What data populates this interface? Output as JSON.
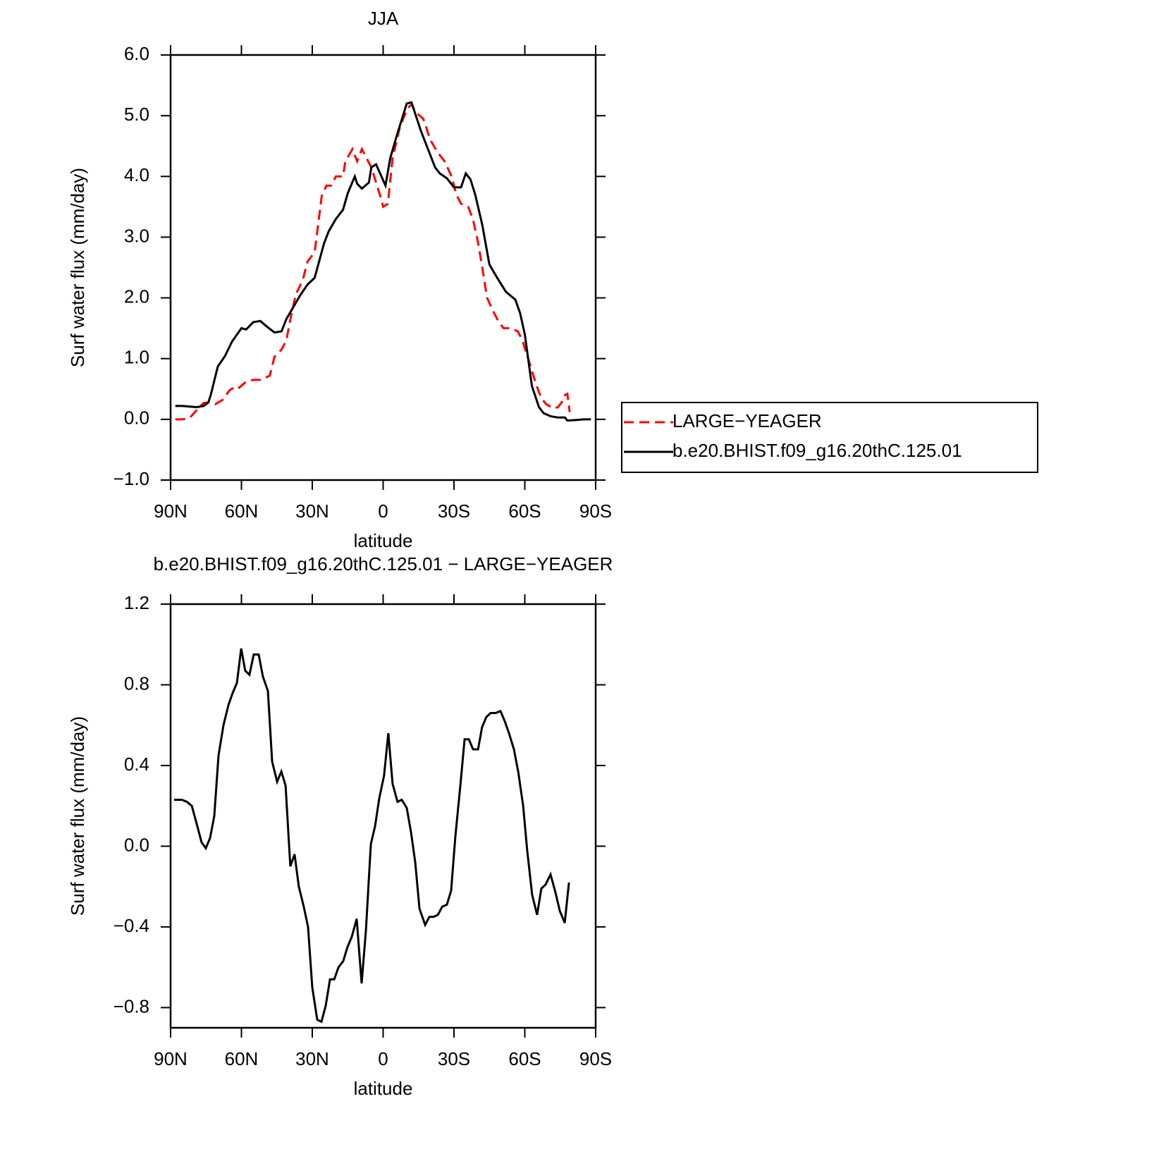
{
  "chart_data": [
    {
      "type": "line",
      "title": "JJA",
      "xlabel": "latitude",
      "ylabel": "Surf water flux (mm/day)",
      "xlim": [
        90,
        -90
      ],
      "xticks": [
        {
          "value": 90,
          "label": "90N"
        },
        {
          "value": 60,
          "label": "60N"
        },
        {
          "value": 30,
          "label": "30N"
        },
        0,
        {
          "value": -30,
          "label": "30S"
        },
        {
          "value": -60,
          "label": "60S"
        },
        {
          "value": -90,
          "label": "90S"
        }
      ],
      "ylim": [
        -1,
        6
      ],
      "yticks": [
        {
          "value": 6,
          "label": "6.0"
        },
        {
          "value": 5,
          "label": "5.0"
        },
        {
          "value": 4,
          "label": "4.0"
        },
        {
          "value": 3,
          "label": "3.0"
        },
        {
          "value": 2,
          "label": "2.0"
        },
        {
          "value": 1,
          "label": "1.0"
        },
        {
          "value": 0,
          "label": "0.0"
        },
        {
          "value": -1,
          "label": "−1.0"
        }
      ],
      "legend": "right",
      "series": [
        {
          "name": "LARGE−YEAGER",
          "color": "#ff0000",
          "linestyle": "dashed",
          "x": [
            88,
            85,
            82,
            79,
            76,
            73,
            71,
            68,
            65,
            62,
            61,
            58,
            55,
            52,
            49,
            48,
            46,
            43,
            41,
            39,
            37,
            34,
            32,
            29,
            26,
            24,
            22,
            20,
            17,
            16,
            13,
            11,
            9,
            7,
            5,
            1,
            0,
            -2,
            -4,
            -7,
            -9,
            -11,
            -12,
            -14,
            -17,
            -20,
            -23,
            -26,
            -29,
            -31,
            -33,
            -36,
            -38,
            -40,
            -42,
            -44,
            -47,
            -49,
            -51,
            -54,
            -57,
            -59,
            -61,
            -63,
            -65,
            -67,
            -69,
            -72,
            -74,
            -76,
            -77,
            -78,
            -79
          ],
          "values": [
            0,
            0,
            0.02,
            0.15,
            0.27,
            0.28,
            0.25,
            0.32,
            0.48,
            0.55,
            0.52,
            0.62,
            0.65,
            0.65,
            0.7,
            0.72,
            1.03,
            1.15,
            1.3,
            1.7,
            2.05,
            2.3,
            2.6,
            2.75,
            3.68,
            3.85,
            3.85,
            4.0,
            4.0,
            4.25,
            4.45,
            4.25,
            4.45,
            4.3,
            4.15,
            3.65,
            3.5,
            3.55,
            4.3,
            4.8,
            5.0,
            5.15,
            5.18,
            5.05,
            4.95,
            4.6,
            4.4,
            4.25,
            4.0,
            3.7,
            3.55,
            3.5,
            3.3,
            2.95,
            2.5,
            2.0,
            1.75,
            1.6,
            1.5,
            1.5,
            1.45,
            1.3,
            1.05,
            0.8,
            0.55,
            0.35,
            0.25,
            0.18,
            0.2,
            0.3,
            0.4,
            0.42,
            0.12
          ]
        },
        {
          "name": "b.e20.BHIST.f09_g16.20thC.125.01",
          "color": "#000000",
          "linestyle": "solid",
          "x": [
            88,
            85,
            82,
            79,
            76,
            74,
            73,
            70,
            67,
            64,
            60,
            58,
            55,
            52,
            49,
            46,
            43,
            41,
            38,
            35,
            32,
            29,
            25,
            23,
            20,
            17,
            15,
            12,
            11,
            9,
            6,
            5,
            3,
            -1,
            -3,
            -6,
            -10,
            -12,
            -16,
            -19,
            -22,
            -24,
            -27,
            -30,
            -33,
            -35,
            -37,
            -39,
            -42,
            -45,
            -48,
            -52,
            -56,
            -58,
            -60,
            -63,
            -66,
            -68,
            -71,
            -74,
            -77,
            -78,
            -82,
            -85,
            -88
          ],
          "values": [
            0.22,
            0.22,
            0.21,
            0.2,
            0.22,
            0.28,
            0.4,
            0.87,
            1.04,
            1.28,
            1.5,
            1.48,
            1.6,
            1.62,
            1.52,
            1.43,
            1.45,
            1.65,
            1.85,
            2.05,
            2.22,
            2.33,
            2.9,
            3.1,
            3.3,
            3.45,
            3.72,
            4.0,
            3.88,
            3.8,
            3.9,
            4.15,
            4.2,
            3.85,
            4.3,
            4.7,
            5.2,
            5.22,
            4.75,
            4.45,
            4.15,
            4.05,
            3.97,
            3.82,
            3.82,
            4.05,
            3.95,
            3.7,
            3.2,
            2.55,
            2.35,
            2.1,
            1.97,
            1.75,
            1.4,
            0.55,
            0.2,
            0.1,
            0.05,
            0.03,
            0.03,
            -0.02,
            -0.01,
            0.0,
            0.0
          ]
        }
      ]
    },
    {
      "type": "line",
      "title": "b.e20.BHIST.f09_g16.20thC.125.01 − LARGE−YEAGER",
      "xlabel": "latitude",
      "ylabel": "Surf water flux (mm/day)",
      "xlim": [
        90,
        -90
      ],
      "xticks": [
        {
          "value": 90,
          "label": "90N"
        },
        {
          "value": 60,
          "label": "60N"
        },
        {
          "value": 30,
          "label": "30N"
        },
        0,
        {
          "value": -30,
          "label": "30S"
        },
        {
          "value": -60,
          "label": "60S"
        },
        {
          "value": -90,
          "label": "90S"
        }
      ],
      "ylim": [
        -0.9,
        1.2
      ],
      "yticks": [
        1.2,
        0.8,
        0.4,
        {
          "value": 0,
          "label": "0.0"
        },
        {
          "value": -0.4,
          "label": "−0.4"
        },
        {
          "value": -0.8,
          "label": "−0.8"
        }
      ],
      "series": [
        {
          "color": "#000000",
          "linestyle": "solid",
          "x": [
            88.5,
            85.2,
            83.1,
            81.0,
            78.7,
            76.9,
            75.1,
            73.3,
            71.5,
            69.7,
            67.6,
            65.5,
            63.7,
            61.9,
            60.1,
            58.4,
            56.6,
            54.8,
            52.7,
            50.9,
            48.8,
            47.0,
            44.9,
            43.1,
            41.3,
            39.3,
            37.5,
            35.7,
            33.6,
            31.8,
            30.0,
            27.9,
            26.1,
            24.3,
            22.5,
            20.7,
            18.9,
            16.9,
            15.1,
            13.3,
            11.2,
            9.1,
            7.3,
            5.2,
            3.4,
            1.6,
            -0.4,
            -2.2,
            -4.0,
            -6.1,
            -7.9,
            -10.0,
            -11.8,
            -13.6,
            -15.4,
            -17.8,
            -19.6,
            -21.4,
            -23.2,
            -25.0,
            -27.0,
            -28.8,
            -30.6,
            -32.7,
            -34.5,
            -36.3,
            -38.1,
            -40.2,
            -41.9,
            -43.7,
            -45.5,
            -47.6,
            -49.7,
            -51.5,
            -53.3,
            -55.4,
            -57.2,
            -59.3,
            -61.0,
            -63.1,
            -65.2,
            -67.0,
            -68.8,
            -70.9,
            -73.0,
            -74.8,
            -76.9,
            -78.7
          ],
          "values": [
            0.23,
            0.23,
            0.22,
            0.2,
            0.1,
            0.02,
            -0.01,
            0.04,
            0.15,
            0.45,
            0.6,
            0.7,
            0.76,
            0.81,
            0.98,
            0.87,
            0.85,
            0.95,
            0.95,
            0.84,
            0.77,
            0.42,
            0.32,
            0.37,
            0.3,
            -0.1,
            -0.04,
            -0.2,
            -0.3,
            -0.4,
            -0.7,
            -0.86,
            -0.87,
            -0.79,
            -0.66,
            -0.66,
            -0.6,
            -0.57,
            -0.5,
            -0.45,
            -0.36,
            -0.68,
            -0.42,
            0.01,
            0.1,
            0.24,
            0.35,
            0.56,
            0.31,
            0.22,
            0.23,
            0.19,
            0.07,
            -0.08,
            -0.31,
            -0.39,
            -0.35,
            -0.35,
            -0.34,
            -0.3,
            -0.29,
            -0.22,
            0.05,
            0.3,
            0.53,
            0.53,
            0.48,
            0.48,
            0.59,
            0.64,
            0.66,
            0.66,
            0.67,
            0.62,
            0.56,
            0.48,
            0.37,
            0.2,
            -0.02,
            -0.24,
            -0.34,
            -0.21,
            -0.19,
            -0.14,
            -0.23,
            -0.32,
            -0.38,
            -0.18
          ]
        }
      ]
    }
  ]
}
